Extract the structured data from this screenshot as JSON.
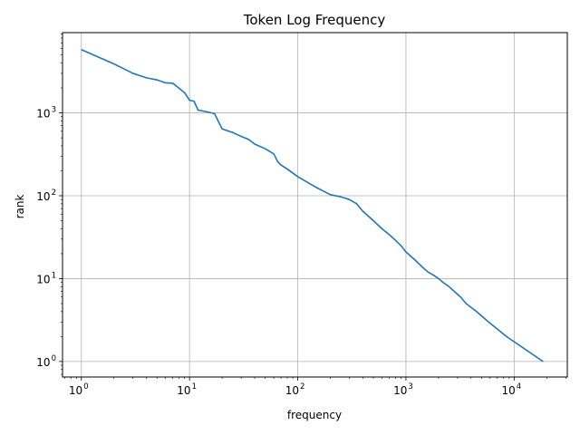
{
  "chart_data": {
    "type": "line",
    "title": "Token Log Frequency",
    "xlabel": "frequency",
    "ylabel": "rank",
    "xscale": "log",
    "yscale": "log",
    "xlim": [
      0.67,
      31000
    ],
    "ylim": [
      0.65,
      9300
    ],
    "grid": true,
    "legend": "none",
    "x_ticks": [
      {
        "base": "10",
        "exp": "0",
        "value": 1
      },
      {
        "base": "10",
        "exp": "1",
        "value": 10
      },
      {
        "base": "10",
        "exp": "2",
        "value": 100
      },
      {
        "base": "10",
        "exp": "3",
        "value": 1000
      },
      {
        "base": "10",
        "exp": "4",
        "value": 10000
      }
    ],
    "y_ticks": [
      {
        "base": "10",
        "exp": "0",
        "value": 1
      },
      {
        "base": "10",
        "exp": "1",
        "value": 10
      },
      {
        "base": "10",
        "exp": "2",
        "value": 100
      },
      {
        "base": "10",
        "exp": "3",
        "value": 1000
      }
    ],
    "series": [
      {
        "color": "#1f77b4",
        "points": [
          [
            1,
            5800
          ],
          [
            1.5,
            4600
          ],
          [
            2,
            3900
          ],
          [
            3,
            3000
          ],
          [
            4,
            2650
          ],
          [
            5,
            2500
          ],
          [
            6,
            2300
          ],
          [
            7,
            2280
          ],
          [
            8,
            1980
          ],
          [
            9,
            1750
          ],
          [
            10,
            1420
          ],
          [
            11,
            1380
          ],
          [
            12,
            1080
          ],
          [
            14,
            1040
          ],
          [
            17,
            980
          ],
          [
            20,
            640
          ],
          [
            25,
            580
          ],
          [
            30,
            520
          ],
          [
            35,
            480
          ],
          [
            40,
            420
          ],
          [
            50,
            370
          ],
          [
            60,
            320
          ],
          [
            65,
            260
          ],
          [
            70,
            235
          ],
          [
            80,
            210
          ],
          [
            100,
            170
          ],
          [
            150,
            125
          ],
          [
            200,
            103
          ],
          [
            250,
            97
          ],
          [
            300,
            90
          ],
          [
            350,
            80
          ],
          [
            400,
            65
          ],
          [
            500,
            50
          ],
          [
            600,
            40
          ],
          [
            700,
            34
          ],
          [
            800,
            29
          ],
          [
            900,
            25
          ],
          [
            1000,
            21
          ],
          [
            1200,
            17
          ],
          [
            1400,
            14
          ],
          [
            1600,
            12
          ],
          [
            1800,
            11
          ],
          [
            2000,
            10
          ],
          [
            2200,
            9
          ],
          [
            2500,
            8
          ],
          [
            2800,
            7
          ],
          [
            3200,
            6
          ],
          [
            3600,
            5
          ],
          [
            4500,
            4
          ],
          [
            5800,
            3
          ],
          [
            8500,
            2
          ],
          [
            18500,
            1
          ]
        ]
      }
    ]
  }
}
